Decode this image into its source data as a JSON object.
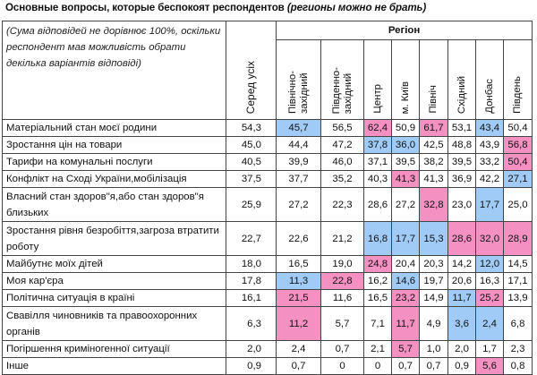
{
  "title": {
    "main": "Основные вопросы, которые беспокоят респондентов ",
    "note": "(регионы можно не брать)"
  },
  "table": {
    "note": "(Сума відповідей не дорівнює 100%, оскільки респондент мав можливість обрати декілька варіантів відповіді)",
    "overall_header": "Серед усіх",
    "region_header": "Регіон",
    "regions": [
      "Північно-\nзахідний",
      "Південно-\nзахідний",
      "Центр",
      "м. Київ",
      "Північ",
      "Східний",
      "Донбас",
      "Південь"
    ],
    "highlight_colors": {
      "high": "#f590c3",
      "low": "#a0cbf6"
    },
    "rows": [
      {
        "label": "Матеріальний стан моєї родини",
        "overall": "54,3",
        "values": [
          "45,7",
          "56,5",
          "62,4",
          "50,9",
          "61,7",
          "53,1",
          "43,4",
          "50,4"
        ],
        "marks": [
          "lo",
          "",
          "hi",
          "",
          "hi",
          "",
          "lo",
          ""
        ]
      },
      {
        "label": "Зростання цін на товари",
        "overall": "45,0",
        "values": [
          "44,4",
          "47,2",
          "37,8",
          "36,0",
          "42,5",
          "48,8",
          "43,9",
          "56,8"
        ],
        "marks": [
          "",
          "",
          "lo",
          "lo",
          "",
          "",
          "",
          "hi"
        ]
      },
      {
        "label": "Тарифи на комунальні послуги",
        "overall": "40,5",
        "values": [
          "39,9",
          "46,0",
          "37,1",
          "39,5",
          "38,2",
          "39,5",
          "33,2",
          "50,4"
        ],
        "marks": [
          "",
          "",
          "",
          "",
          "",
          "",
          "",
          "hi"
        ]
      },
      {
        "label": "Конфлікт на Сході України,мобілізація",
        "overall": "37,5",
        "values": [
          "37,7",
          "35,2",
          "40,3",
          "41,3",
          "41,3",
          "36,9",
          "42,2",
          "27,1"
        ],
        "marks": [
          "",
          "",
          "",
          "hi",
          "",
          "",
          "",
          "lo"
        ]
      },
      {
        "label": "Власний стан здоров\"я,або стан здоров\"я близьких",
        "overall": "25,9",
        "values": [
          "27,2",
          "22,3",
          "28,6",
          "27,2",
          "32,8",
          "23,0",
          "17,7",
          "25,0"
        ],
        "marks": [
          "",
          "",
          "",
          "",
          "hi",
          "",
          "lo",
          ""
        ]
      },
      {
        "label": "Зростання рівня безробіття,загроза втратити роботу",
        "overall": "22,7",
        "values": [
          "22,6",
          "21,2",
          "16,8",
          "17,7",
          "15,3",
          "28,6",
          "32,0",
          "28,9"
        ],
        "marks": [
          "",
          "",
          "lo",
          "lo",
          "lo",
          "hi",
          "hi",
          "hi"
        ]
      },
      {
        "label": "Майбутнє моїх дітей",
        "overall": "18,0",
        "values": [
          "16,5",
          "19,0",
          "24,8",
          "20,4",
          "20,3",
          "14,2",
          "12,0",
          "14,5"
        ],
        "marks": [
          "",
          "",
          "hi",
          "",
          "",
          "",
          "lo",
          ""
        ]
      },
      {
        "label": "Моя кар'єра",
        "overall": "17,8",
        "values": [
          "11,3",
          "22,8",
          "16,2",
          "14,6",
          "19,7",
          "20,6",
          "16,3",
          "17,1"
        ],
        "marks": [
          "lo",
          "hi",
          "",
          "lo",
          "",
          "",
          "",
          ""
        ]
      },
      {
        "label": "Політична ситуація в країні",
        "overall": "16,1",
        "values": [
          "21,5",
          "11,6",
          "16,5",
          "23,2",
          "14,9",
          "11,7",
          "25,2",
          "13,9"
        ],
        "marks": [
          "hi",
          "",
          "",
          "hi",
          "",
          "lo",
          "hi",
          ""
        ]
      },
      {
        "label": "Свавілля чиновників та правоохоронних органів",
        "overall": "6,3",
        "values": [
          "11,2",
          "5,7",
          "7,1",
          "11,7",
          "4,9",
          "3,6",
          "2,4",
          "6,8"
        ],
        "marks": [
          "hi",
          "",
          "",
          "hi",
          "",
          "lo",
          "lo",
          ""
        ]
      },
      {
        "label": "Погіршення криміногенної ситуації",
        "overall": "2,0",
        "values": [
          "2,4",
          "0,7",
          "2,1",
          "5,7",
          "1,0",
          "2,0",
          "1,7",
          "2,3"
        ],
        "marks": [
          "",
          "",
          "",
          "hi",
          "",
          "",
          "",
          ""
        ]
      },
      {
        "label": "Інше",
        "overall": "0,9",
        "values": [
          "0,7",
          "0",
          "0",
          "0,7",
          "0,7",
          "0,9",
          "5,6",
          "0,8"
        ],
        "marks": [
          "",
          "",
          "",
          "",
          "",
          "",
          "hi",
          ""
        ]
      }
    ]
  }
}
